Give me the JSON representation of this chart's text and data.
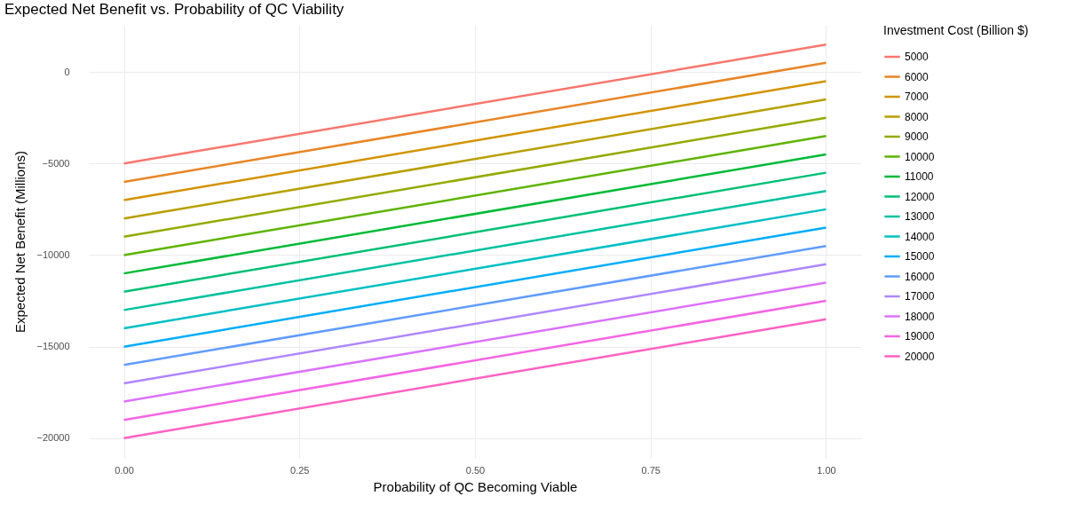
{
  "chart_data": {
    "type": "line",
    "title": "Expected Net Benefit vs. Probability of QC Viability",
    "xlabel": "Probability of QC Becoming Viable",
    "ylabel": "Expected Net Benefit (Millions)",
    "legend_title": "Investment Cost (Billion $)",
    "legend": "right",
    "grid": true,
    "marker": "none",
    "line_style": "solid",
    "xlim": [
      -0.05,
      1.05
    ],
    "xticks": [
      {
        "value": 0,
        "label": "0.00"
      },
      {
        "value": 0.25,
        "label": "0.25"
      },
      {
        "value": 0.5,
        "label": "0.50"
      },
      {
        "value": 0.75,
        "label": "0.75"
      },
      {
        "value": 1,
        "label": "1.00"
      }
    ],
    "ylim": [
      -21075,
      2575
    ],
    "yticks": [
      -20000,
      -15000,
      -10000,
      -5000,
      0
    ],
    "x": [
      0,
      1
    ],
    "series": [
      {
        "name": "5000",
        "color": "#F8766D",
        "values": [
          -5000,
          1500
        ]
      },
      {
        "name": "6000",
        "color": "#E88526",
        "values": [
          -6000,
          500
        ]
      },
      {
        "name": "7000",
        "color": "#D39200",
        "values": [
          -7000,
          -500
        ]
      },
      {
        "name": "8000",
        "color": "#B79F00",
        "values": [
          -8000,
          -1500
        ]
      },
      {
        "name": "9000",
        "color": "#93AA00",
        "values": [
          -9000,
          -2500
        ]
      },
      {
        "name": "10000",
        "color": "#5EB300",
        "values": [
          -10000,
          -3500
        ]
      },
      {
        "name": "11000",
        "color": "#00BA38",
        "values": [
          -11000,
          -4500
        ]
      },
      {
        "name": "12000",
        "color": "#00BF74",
        "values": [
          -12000,
          -5500
        ]
      },
      {
        "name": "13000",
        "color": "#00C19F",
        "values": [
          -13000,
          -6500
        ]
      },
      {
        "name": "14000",
        "color": "#00BFC4",
        "values": [
          -14000,
          -7500
        ]
      },
      {
        "name": "15000",
        "color": "#00ADFA",
        "values": [
          -15000,
          -8500
        ]
      },
      {
        "name": "16000",
        "color": "#619CFF",
        "values": [
          -16000,
          -9500
        ]
      },
      {
        "name": "17000",
        "color": "#AE87FF",
        "values": [
          -17000,
          -10500
        ]
      },
      {
        "name": "18000",
        "color": "#DB72FB",
        "values": [
          -18000,
          -11500
        ]
      },
      {
        "name": "19000",
        "color": "#F564E3",
        "values": [
          -19000,
          -12500
        ]
      },
      {
        "name": "20000",
        "color": "#FF61C3",
        "values": [
          -20000,
          -13500
        ]
      }
    ]
  }
}
